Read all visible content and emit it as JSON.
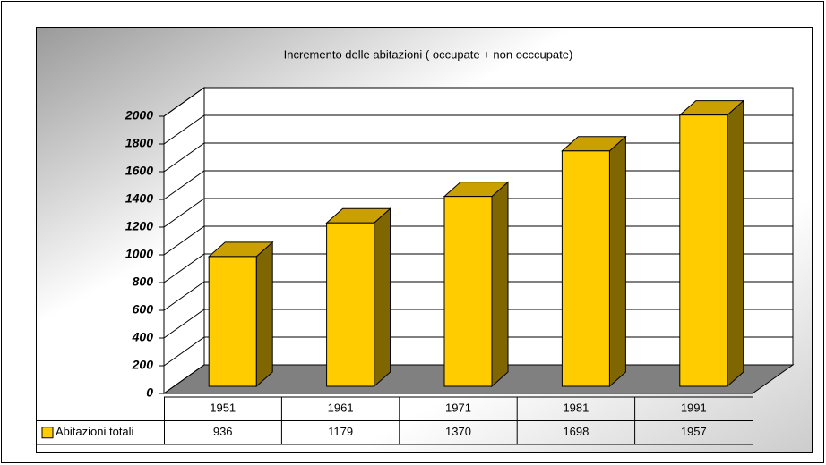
{
  "chart_data": {
    "type": "bar3d",
    "title": "Incremento delle abitazioni ( occupate + non occcupate)",
    "categories": [
      "1951",
      "1961",
      "1971",
      "1981",
      "1991"
    ],
    "series": [
      {
        "name": "Abitazioni totali",
        "color": "#ffcc00",
        "values": [
          936,
          1179,
          1370,
          1698,
          1957
        ]
      }
    ],
    "ylim": [
      0,
      2000
    ],
    "yticks": [
      0,
      200,
      400,
      600,
      800,
      1000,
      1200,
      1400,
      1600,
      1800,
      2000
    ],
    "grid": true,
    "data_table": true
  }
}
